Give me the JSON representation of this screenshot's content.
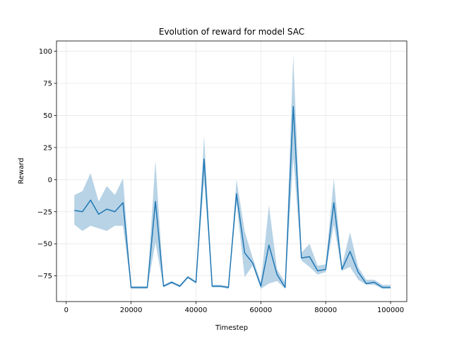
{
  "chart_data": {
    "type": "line",
    "title": "Evolution of reward for model SAC",
    "xlabel": "Timestep",
    "ylabel": "Reward",
    "xlim": [
      -3000,
      105000
    ],
    "ylim": [
      -95,
      108
    ],
    "x_ticks": [
      0,
      20000,
      40000,
      60000,
      80000,
      100000
    ],
    "y_ticks": [
      -75,
      -50,
      -25,
      0,
      25,
      50,
      75,
      100
    ],
    "grid": true,
    "line_color": "#1f77b4",
    "band_color": "#a6c8e0",
    "series": [
      {
        "x": [
          2500,
          5000,
          7500,
          10000,
          12500,
          15000,
          17500,
          20000,
          22500,
          25000,
          27500,
          30000,
          32500,
          35000,
          37500,
          40000,
          42500,
          45000,
          47500,
          50000,
          52500,
          55000,
          57500,
          60000,
          62500,
          65000,
          67500,
          70000,
          72500,
          75000,
          77500,
          80000,
          82500,
          85000,
          87500,
          90000,
          92500,
          95000,
          97500,
          100000
        ],
        "mean": [
          -24,
          -25,
          -16,
          -27,
          -23,
          -25,
          -18,
          -84,
          -84,
          -84,
          -17,
          -83,
          -80,
          -83,
          -76,
          -80,
          16,
          -83,
          -83,
          -84,
          -11,
          -57,
          -65,
          -83,
          -51,
          -74,
          -84,
          57,
          -61,
          -60,
          -71,
          -70,
          -18,
          -70,
          -56,
          -72,
          -81,
          -80,
          -84,
          -84
        ],
        "upper": [
          -12,
          -9,
          5,
          -17,
          -5,
          -12,
          1,
          -83,
          -83,
          -83,
          15,
          -82,
          -79,
          -82,
          -75,
          -79,
          34,
          -82,
          -82,
          -83,
          0,
          -40,
          -61,
          -80,
          -20,
          -70,
          -80,
          97,
          -57,
          -50,
          -67,
          -66,
          1,
          -67,
          -41,
          -68,
          -78,
          -78,
          -82,
          -82
        ],
        "lower": [
          -35,
          -40,
          -36,
          -38,
          -40,
          -36,
          -36,
          -85,
          -85,
          -85,
          -49,
          -84,
          -81,
          -84,
          -77,
          -81,
          0,
          -84,
          -84,
          -85,
          -18,
          -76,
          -67,
          -85,
          -81,
          -79,
          -85,
          17,
          -63,
          -68,
          -74,
          -72,
          -35,
          -71,
          -68,
          -78,
          -82,
          -82,
          -85,
          -85
        ]
      }
    ]
  }
}
